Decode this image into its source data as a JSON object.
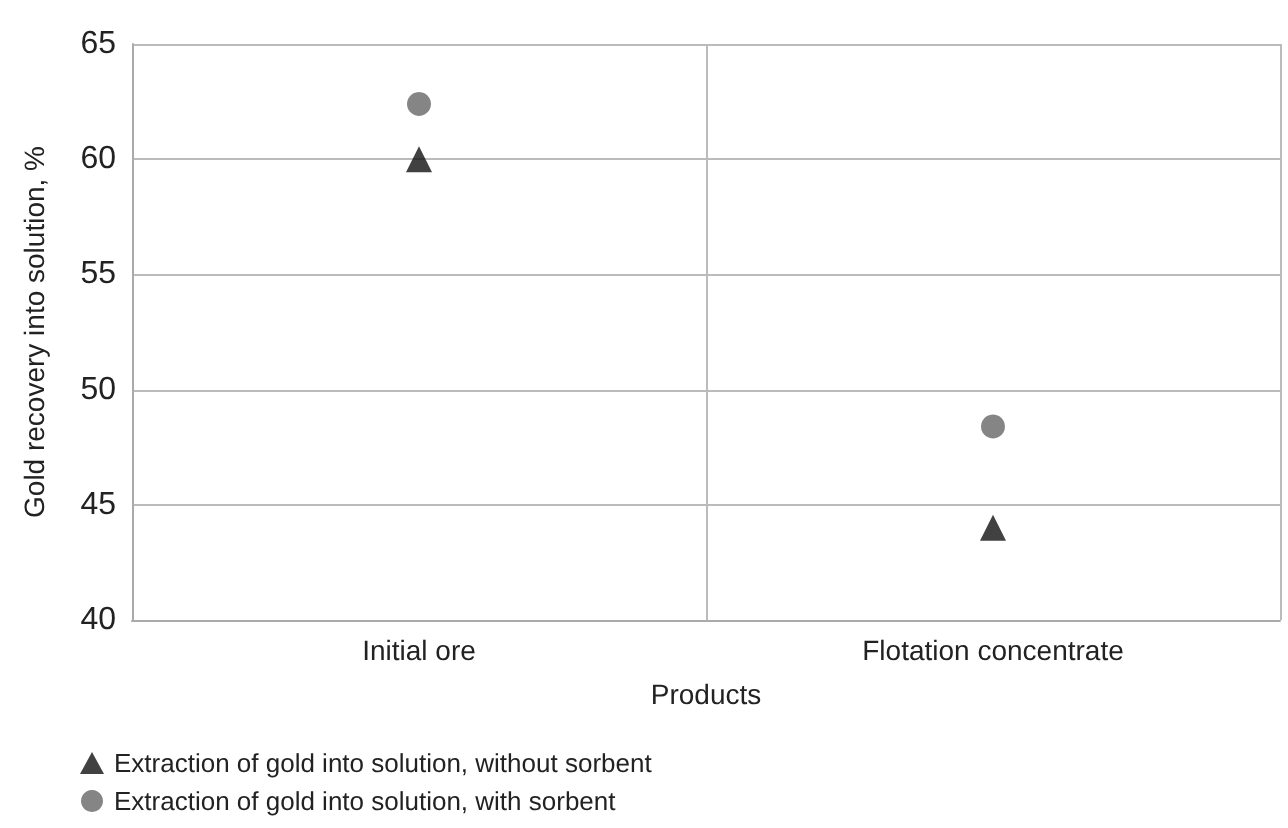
{
  "chart_data": {
    "type": "scatter",
    "xlabel": "Products",
    "ylabel": "Gold recovery into solution, %",
    "categories": [
      "Initial ore",
      "Flotation concentrate"
    ],
    "series": [
      {
        "name": "Extraction of gold into solution, without sorbent",
        "color": "#111111",
        "marker": "triangle",
        "values": [
          60,
          44
        ]
      },
      {
        "name": "Extraction of gold into solution, with sorbent",
        "color": "#666666",
        "marker": "circle",
        "values": [
          62.4,
          48.4
        ]
      }
    ],
    "ylim": [
      40,
      65
    ],
    "yticks": [
      40,
      45,
      50,
      55,
      60,
      65
    ],
    "grid": true,
    "legend": "bottom left"
  }
}
